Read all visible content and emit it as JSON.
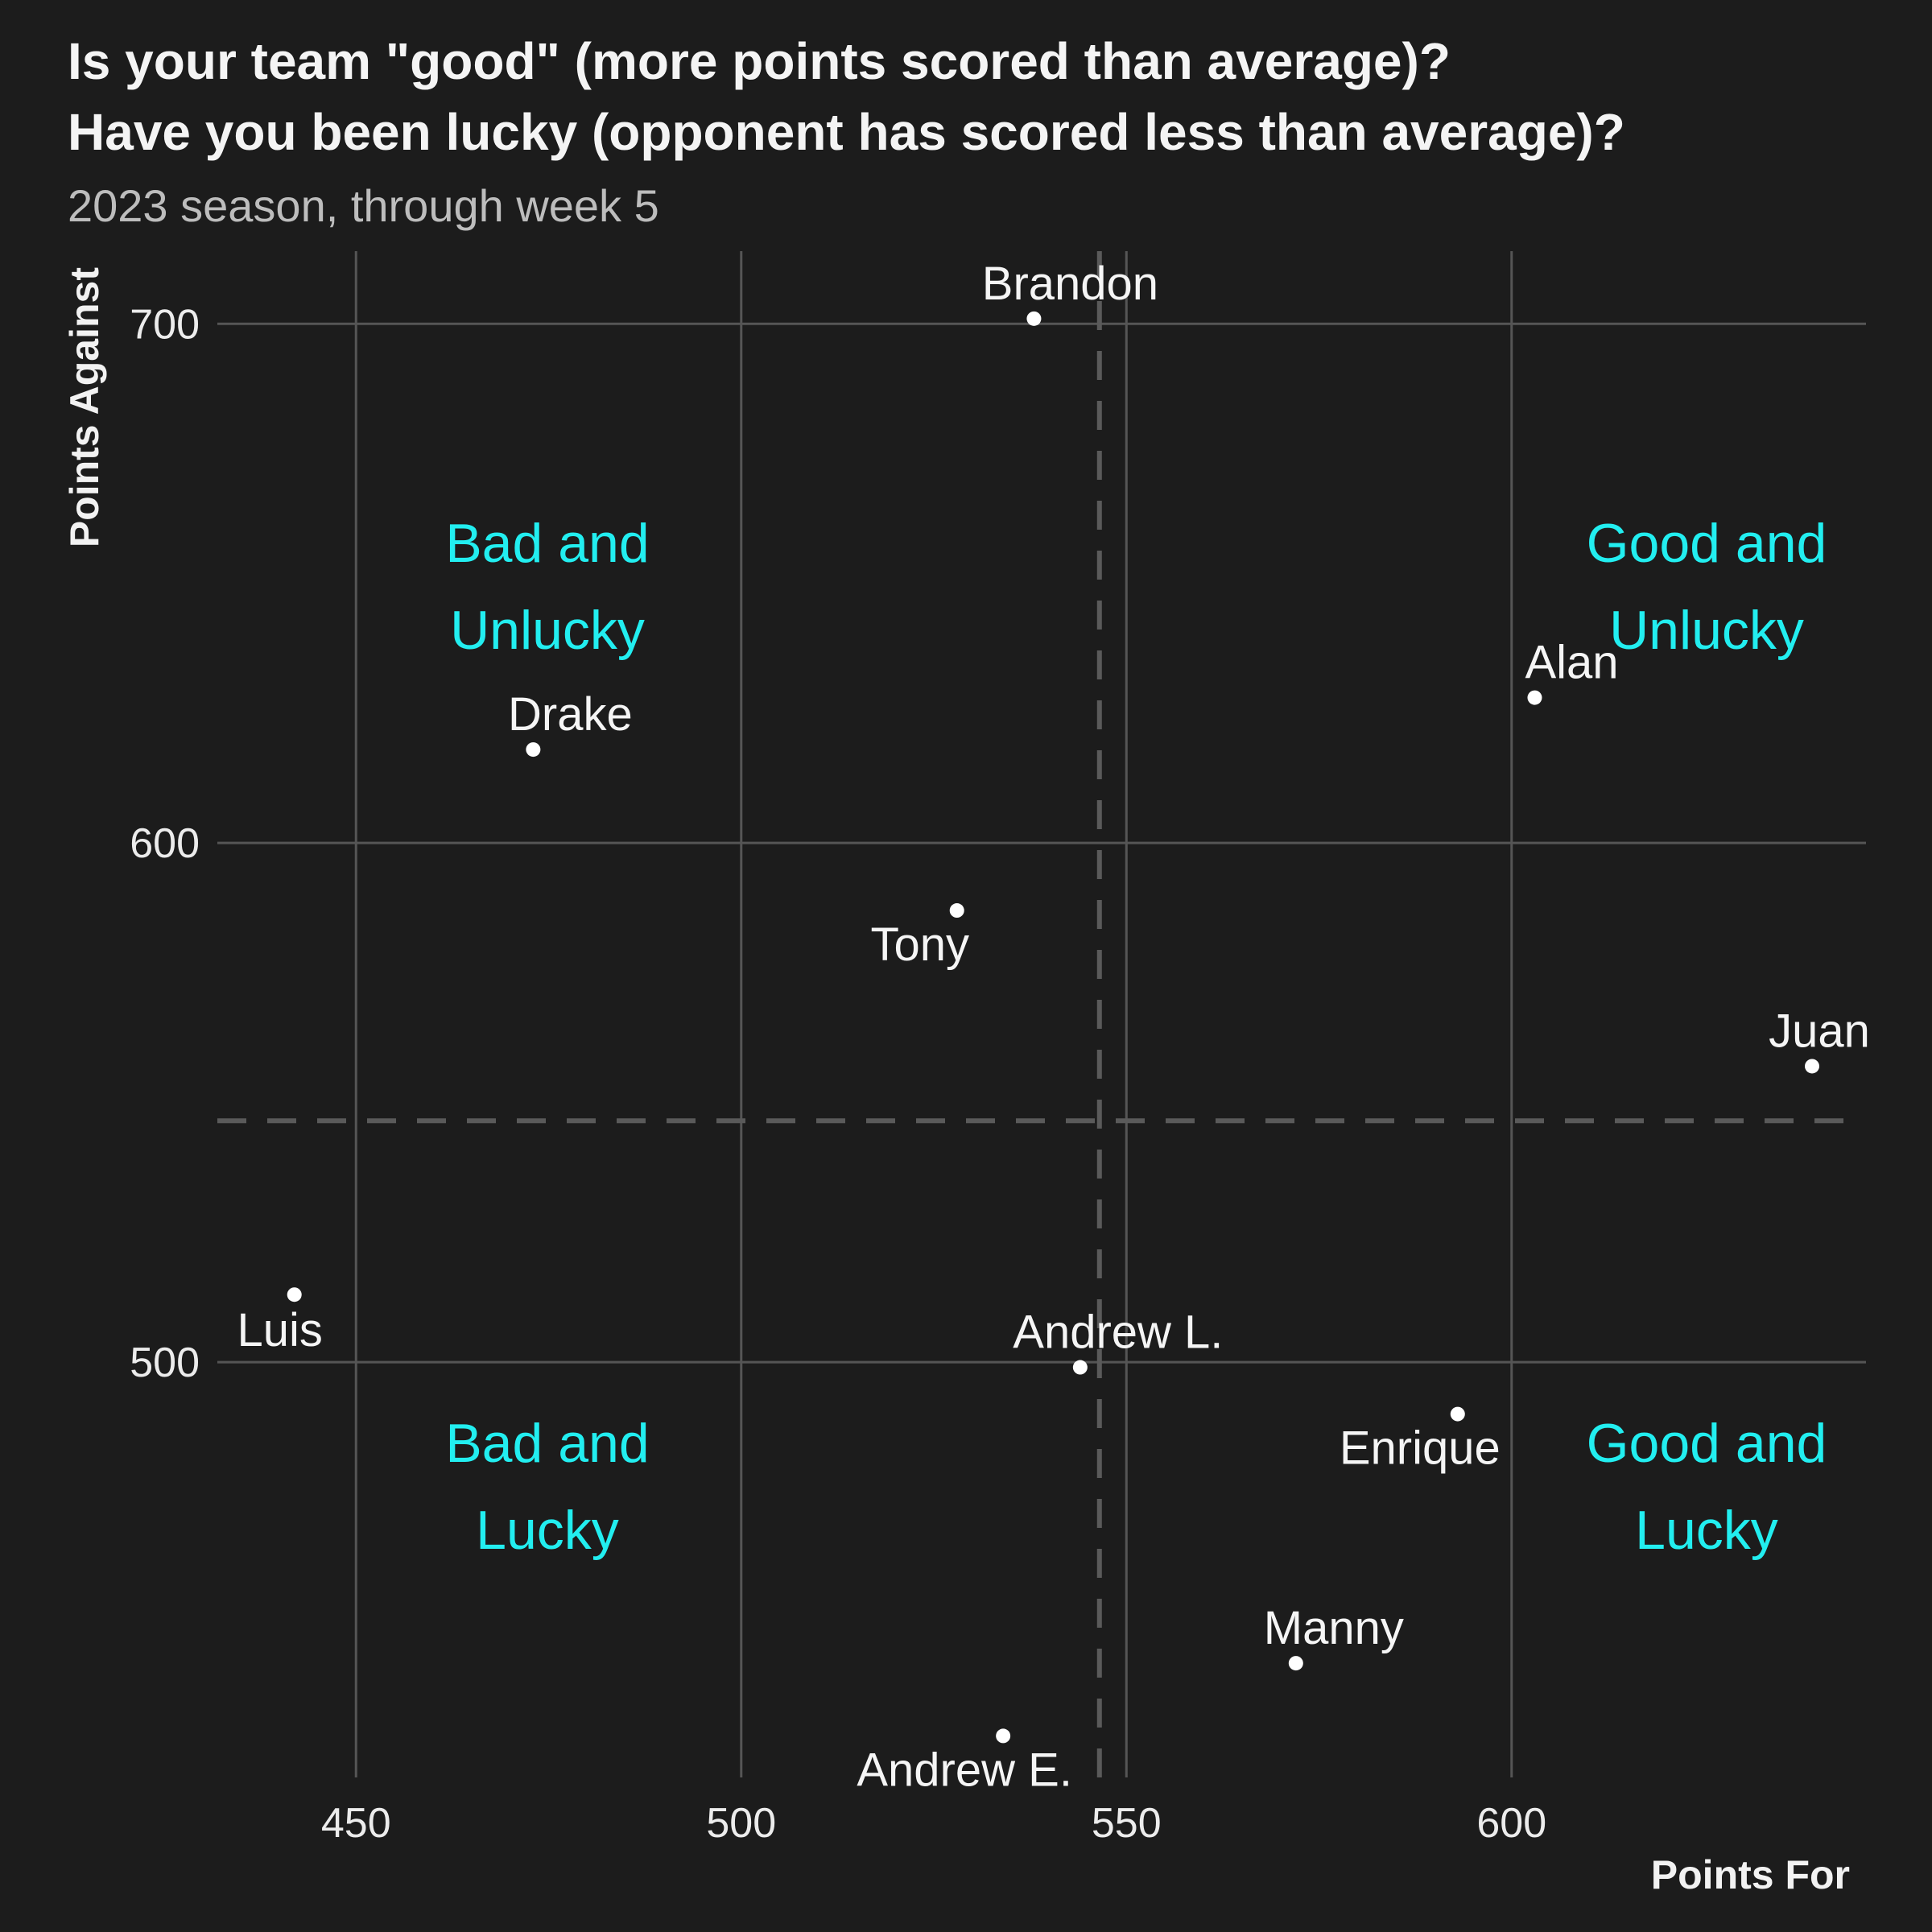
{
  "chart_data": {
    "type": "scatter",
    "title": [
      "Is your team \"good\" (more points scored than average)?",
      "Have you been lucky (opponent has scored less than average)?"
    ],
    "subtitle": "2023 season, through week 5",
    "xlabel": "Points For",
    "ylabel": "Points Against",
    "xlim": [
      432,
      646
    ],
    "ylim": [
      420,
      714
    ],
    "x_ticks": [
      450,
      500,
      550,
      600
    ],
    "y_ticks": [
      500,
      600,
      700
    ],
    "grid": true,
    "reference_lines": {
      "x_mean": 546.5,
      "y_mean": 546.5
    },
    "points": [
      {
        "name": "Brandon",
        "x": 538,
        "y": 701
      },
      {
        "name": "Alan",
        "x": 603,
        "y": 628
      },
      {
        "name": "Drake",
        "x": 473,
        "y": 618
      },
      {
        "name": "Tony",
        "x": 528,
        "y": 587
      },
      {
        "name": "Juan",
        "x": 639,
        "y": 557
      },
      {
        "name": "Luis",
        "x": 442,
        "y": 513
      },
      {
        "name": "Andrew L.",
        "x": 544,
        "y": 499
      },
      {
        "name": "Enrique",
        "x": 593,
        "y": 490
      },
      {
        "name": "Manny",
        "x": 572,
        "y": 442
      },
      {
        "name": "Andrew E.",
        "x": 534,
        "y": 428
      }
    ],
    "quadrant_labels": [
      {
        "id": "bad-unlucky",
        "lines": [
          "Bad and",
          "Unlucky"
        ]
      },
      {
        "id": "good-unlucky",
        "lines": [
          "Good and",
          "Unlucky"
        ]
      },
      {
        "id": "bad-lucky",
        "lines": [
          "Bad and",
          "Lucky"
        ]
      },
      {
        "id": "good-lucky",
        "lines": [
          "Good and",
          "Lucky"
        ]
      }
    ],
    "colors": {
      "background": "#1c1c1c",
      "quadrant_label": "#22eef0",
      "point": "#ffffff",
      "grid": "#555555"
    }
  }
}
